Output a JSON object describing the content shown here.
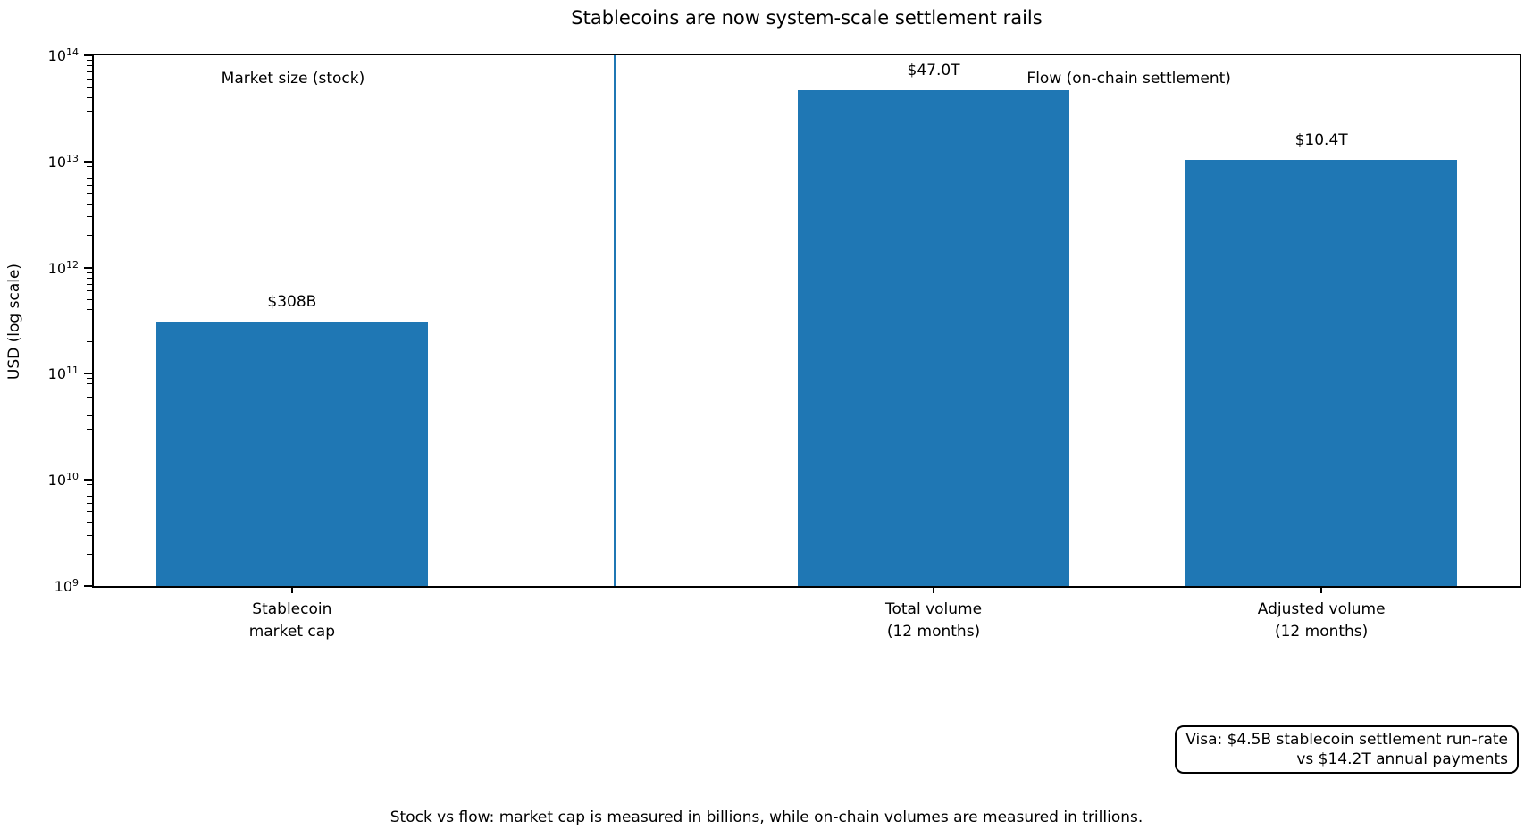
{
  "chart_data": {
    "type": "bar",
    "title": "Stablecoins are now system-scale settlement rails",
    "ylabel": "USD (log scale)",
    "yscale": "log",
    "ylim_exponents": [
      9,
      14
    ],
    "ytick_exponents": [
      9,
      10,
      11,
      12,
      13,
      14
    ],
    "grid": false,
    "legend": null,
    "categories": [
      {
        "line1": "Stablecoin",
        "line2": "market cap"
      },
      {
        "line1": "Total volume",
        "line2": "(12 months)"
      },
      {
        "line1": "Adjusted volume",
        "line2": "(12 months)"
      }
    ],
    "values": [
      308000000000,
      47000000000000,
      10400000000000
    ],
    "bar_labels": [
      "$308B",
      "$47.0T",
      "$10.4T"
    ],
    "section_labels": [
      "Market size (stock)",
      "Flow (on-chain settlement)"
    ],
    "annotation_lines": [
      "Visa: $4.5B stablecoin settlement run-rate",
      "vs $14.2T annual payments"
    ],
    "footnote": "Stock vs flow: market cap is measured in billions, while on-chain volumes are measured in trillions.",
    "colors": {
      "bar": "#1f77b4",
      "divider": "#1f77b4",
      "axis": "#000000",
      "text": "#000000",
      "background": "#ffffff"
    }
  }
}
